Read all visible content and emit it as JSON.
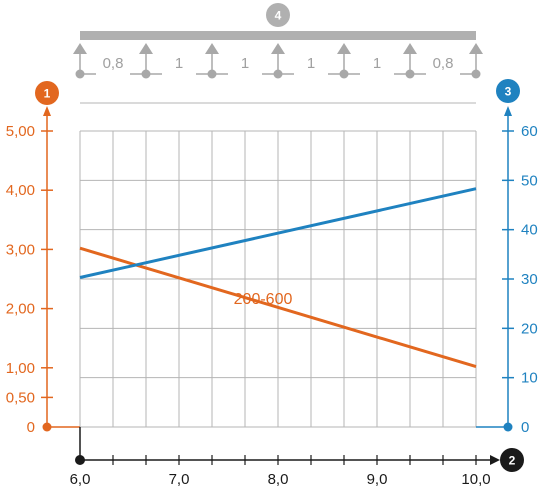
{
  "colors": {
    "orange": "#e2671f",
    "blue": "#1f82c0",
    "grid": "#b5b5b5",
    "beam": "#b0b0b0",
    "support": "#a8a8a8",
    "span_text": "#a0a0a0",
    "black": "#1a1a1a"
  },
  "chart_data": {
    "type": "line",
    "x": [
      6.0,
      10.0
    ],
    "xlim": [
      6.0,
      10.0
    ],
    "x_ticks": [
      "6,0",
      "7,0",
      "8,0",
      "9,0",
      "10,0"
    ],
    "x_tick_values": [
      6.0,
      7.0,
      8.0,
      9.0,
      10.0
    ],
    "x_minor_step": 0.333,
    "ylim_left": [
      0,
      5
    ],
    "y_left_ticks": [
      "0",
      "0,50",
      "1,00",
      "2,00",
      "3,00",
      "4,00",
      "5,00"
    ],
    "y_left_tick_values": [
      0,
      0.5,
      1.0,
      2.0,
      3.0,
      4.0,
      5.0
    ],
    "ylim_right": [
      0,
      60
    ],
    "y_right_ticks": [
      "0",
      "10",
      "20",
      "30",
      "40",
      "50",
      "60"
    ],
    "y_right_tick_values": [
      0,
      10,
      20,
      30,
      40,
      50,
      60
    ],
    "grid": true,
    "series": [
      {
        "name": "200-600",
        "axis": "left",
        "color": "orange",
        "x": [
          6.0,
          10.0
        ],
        "values": [
          3.02,
          1.02
        ]
      },
      {
        "name": "",
        "axis": "right",
        "color": "blue",
        "x": [
          6.0,
          10.0
        ],
        "values": [
          30.3,
          48.3
        ]
      }
    ],
    "annotation": "200-600",
    "badges": {
      "left_axis": "1",
      "right_axis": "3",
      "x_axis": "2",
      "beam": "4"
    },
    "spans": [
      "0,8",
      "1",
      "1",
      "1",
      "1",
      "0,8"
    ]
  }
}
